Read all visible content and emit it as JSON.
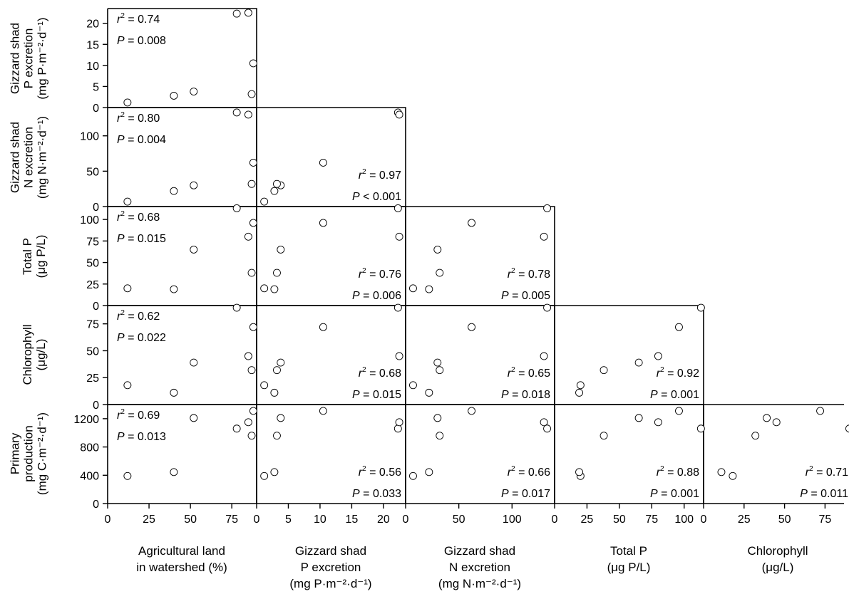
{
  "chart_data": {
    "type": "scatter",
    "layout": "lower-triangular scatterplot matrix",
    "grid": false,
    "legend": "none",
    "variables": [
      {
        "key": "ag",
        "name_lines": [
          "Agricultural land",
          "in watershed (%)"
        ],
        "range": [
          0,
          90
        ],
        "ticks": [
          0,
          25,
          50,
          75
        ]
      },
      {
        "key": "pex",
        "name_lines": [
          "Gizzard shad",
          "P excretion",
          "(mg P·m⁻²·d⁻¹)"
        ],
        "range": [
          0,
          23.5
        ],
        "ticks": [
          0,
          5,
          10,
          15,
          20
        ]
      },
      {
        "key": "nex",
        "name_lines": [
          "Gizzard shad",
          "N excretion",
          "(mg N·m⁻²·d⁻¹)"
        ],
        "range": [
          0,
          140
        ],
        "ticks": [
          0,
          50,
          100
        ]
      },
      {
        "key": "tp",
        "name_lines": [
          "Total P",
          "(μg P/L)"
        ],
        "range": [
          0,
          115
        ],
        "ticks": [
          0,
          25,
          50,
          75,
          100
        ]
      },
      {
        "key": "chl",
        "name_lines": [
          "Chlorophyll",
          "(μg/L)"
        ],
        "range": [
          0,
          92
        ],
        "ticks": [
          0,
          25,
          50,
          75
        ]
      },
      {
        "key": "pp",
        "name_lines": [
          "Primary",
          "production",
          "(mg C·m⁻²·d⁻¹)"
        ],
        "range": [
          0,
          1400
        ],
        "ticks": [
          0,
          400,
          800,
          1200
        ]
      }
    ],
    "points": [
      {
        "ag": 12,
        "pex": 1.2,
        "nex": 7,
        "tp": 20,
        "chl": 18,
        "pp": 390
      },
      {
        "ag": 40,
        "pex": 2.8,
        "nex": 22,
        "tp": 19,
        "chl": 11,
        "pp": 445
      },
      {
        "ag": 52,
        "pex": 3.8,
        "nex": 30,
        "tp": 65,
        "chl": 39,
        "pp": 1210
      },
      {
        "ag": 78,
        "pex": 22.3,
        "nex": 133,
        "tp": 113,
        "chl": 90,
        "pp": 1060
      },
      {
        "ag": 85,
        "pex": 22.5,
        "nex": 130,
        "tp": 80,
        "chl": 45,
        "pp": 1150
      },
      {
        "ag": 88,
        "pex": 10.5,
        "nex": 62,
        "tp": 96,
        "chl": 72,
        "pp": 1310
      },
      {
        "ag": 87,
        "pex": 3.2,
        "nex": 32,
        "tp": 38,
        "chl": 32,
        "pp": 960
      }
    ],
    "panels": [
      {
        "row": 1,
        "col": 0,
        "r2": "0.74",
        "p": "= 0.008",
        "stat_pos": "top-left"
      },
      {
        "row": 2,
        "col": 0,
        "r2": "0.80",
        "p": "= 0.004",
        "stat_pos": "top-left"
      },
      {
        "row": 2,
        "col": 1,
        "r2": "0.97",
        "p": "< 0.001",
        "stat_pos": "bottom-right"
      },
      {
        "row": 3,
        "col": 0,
        "r2": "0.68",
        "p": "= 0.015",
        "stat_pos": "top-left"
      },
      {
        "row": 3,
        "col": 1,
        "r2": "0.76",
        "p": "= 0.006",
        "stat_pos": "bottom-right"
      },
      {
        "row": 3,
        "col": 2,
        "r2": "0.78",
        "p": "= 0.005",
        "stat_pos": "bottom-right"
      },
      {
        "row": 4,
        "col": 0,
        "r2": "0.62",
        "p": "= 0.022",
        "stat_pos": "top-left"
      },
      {
        "row": 4,
        "col": 1,
        "r2": "0.68",
        "p": "= 0.015",
        "stat_pos": "bottom-right"
      },
      {
        "row": 4,
        "col": 2,
        "r2": "0.65",
        "p": "= 0.018",
        "stat_pos": "bottom-right"
      },
      {
        "row": 4,
        "col": 3,
        "r2": "0.92",
        "p": "= 0.001",
        "stat_pos": "bottom-right"
      },
      {
        "row": 5,
        "col": 0,
        "r2": "0.69",
        "p": "= 0.013",
        "stat_pos": "top-left"
      },
      {
        "row": 5,
        "col": 1,
        "r2": "0.56",
        "p": "= 0.033",
        "stat_pos": "bottom-right"
      },
      {
        "row": 5,
        "col": 2,
        "r2": "0.66",
        "p": "= 0.017",
        "stat_pos": "bottom-right"
      },
      {
        "row": 5,
        "col": 3,
        "r2": "0.88",
        "p": "= 0.001",
        "stat_pos": "bottom-right"
      },
      {
        "row": 5,
        "col": 4,
        "r2": "0.71",
        "p": "= 0.011",
        "stat_pos": "bottom-right"
      }
    ]
  },
  "labels": {
    "row_1": [
      "Gizzard shad",
      "P excretion",
      "(mg P·m⁻²·d⁻¹)"
    ],
    "row_2": [
      "Gizzard shad",
      "N excretion",
      "(mg N·m⁻²·d⁻¹)"
    ],
    "row_3": [
      "Total P",
      "(μg P/L)"
    ],
    "row_4": [
      "Chlorophyll",
      "(μg/L)"
    ],
    "row_5": [
      "Primary",
      "production",
      "(mg C·m⁻²·d⁻¹)"
    ],
    "col_0": [
      "Agricultural land",
      "in watershed (%)"
    ],
    "col_1": [
      "Gizzard shad",
      "P excretion",
      "(mg P·m⁻²·d⁻¹)"
    ],
    "col_2": [
      "Gizzard shad",
      "N excretion",
      "(mg N·m⁻²·d⁻¹)"
    ],
    "col_3": [
      "Total P",
      "(μg P/L)"
    ],
    "col_4": [
      "Chlorophyll",
      "(μg/L)"
    ]
  }
}
